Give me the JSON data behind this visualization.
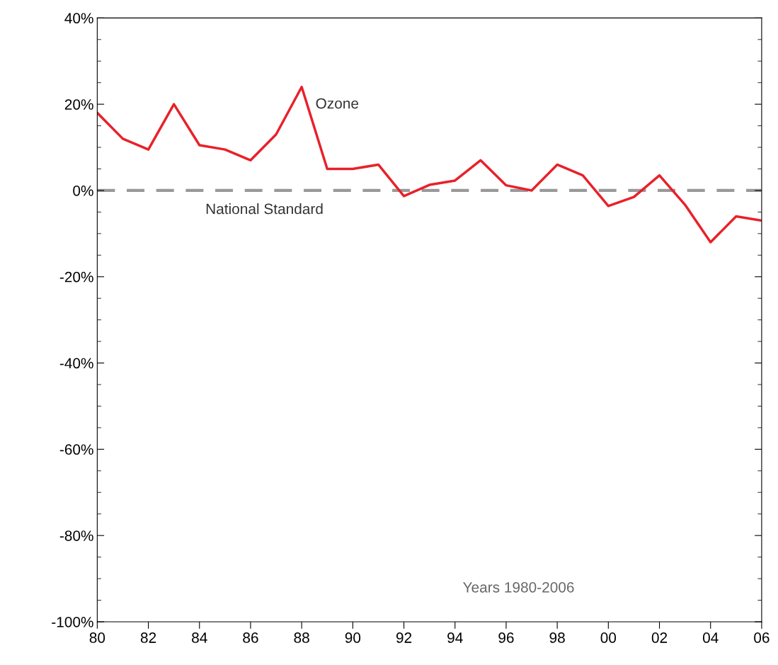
{
  "chart_data": {
    "type": "line",
    "x": [
      1980,
      1981,
      1982,
      1983,
      1984,
      1985,
      1986,
      1987,
      1988,
      1989,
      1990,
      1991,
      1992,
      1993,
      1994,
      1995,
      1996,
      1997,
      1998,
      1999,
      2000,
      2001,
      2002,
      2003,
      2004,
      2005,
      2006
    ],
    "series": [
      {
        "name": "Ozone",
        "color": "#e8212a",
        "values": [
          18,
          12,
          9.5,
          20,
          10.5,
          9.5,
          7,
          13,
          24,
          5,
          5,
          6,
          -1.3,
          1.3,
          2.3,
          7,
          1.2,
          0,
          6,
          3.5,
          -3.6,
          -1.5,
          3.5,
          -3.3,
          -12,
          -6,
          -7
        ]
      }
    ],
    "xlim": [
      1980,
      2006
    ],
    "xticks": [
      {
        "value": 1980,
        "label": "80"
      },
      {
        "value": 1982,
        "label": "82"
      },
      {
        "value": 1984,
        "label": "84"
      },
      {
        "value": 1986,
        "label": "86"
      },
      {
        "value": 1988,
        "label": "88"
      },
      {
        "value": 1990,
        "label": "90"
      },
      {
        "value": 1992,
        "label": "92"
      },
      {
        "value": 1994,
        "label": "94"
      },
      {
        "value": 1996,
        "label": "96"
      },
      {
        "value": 1998,
        "label": "98"
      },
      {
        "value": 2000,
        "label": "00"
      },
      {
        "value": 2002,
        "label": "02"
      },
      {
        "value": 2004,
        "label": "04"
      },
      {
        "value": 2006,
        "label": "06"
      }
    ],
    "ylim": [
      -100,
      40
    ],
    "yticks": [
      {
        "value": -100,
        "label": "-100%"
      },
      {
        "value": -80,
        "label": "-80%"
      },
      {
        "value": -60,
        "label": "-60%"
      },
      {
        "value": -40,
        "label": "-40%"
      },
      {
        "value": -20,
        "label": "-20%"
      },
      {
        "value": 0,
        "label": "0%"
      },
      {
        "value": 20,
        "label": "20%"
      },
      {
        "value": 40,
        "label": "40%"
      }
    ],
    "ref_lines": [
      {
        "axis": "y",
        "value": 0,
        "label": "National Standard",
        "color": "#999999",
        "line_style": "dashed"
      }
    ],
    "annotations": [
      "Years 1980-2006"
    ],
    "grid": false,
    "legend": false,
    "marker": "none",
    "line_style": "solid"
  }
}
